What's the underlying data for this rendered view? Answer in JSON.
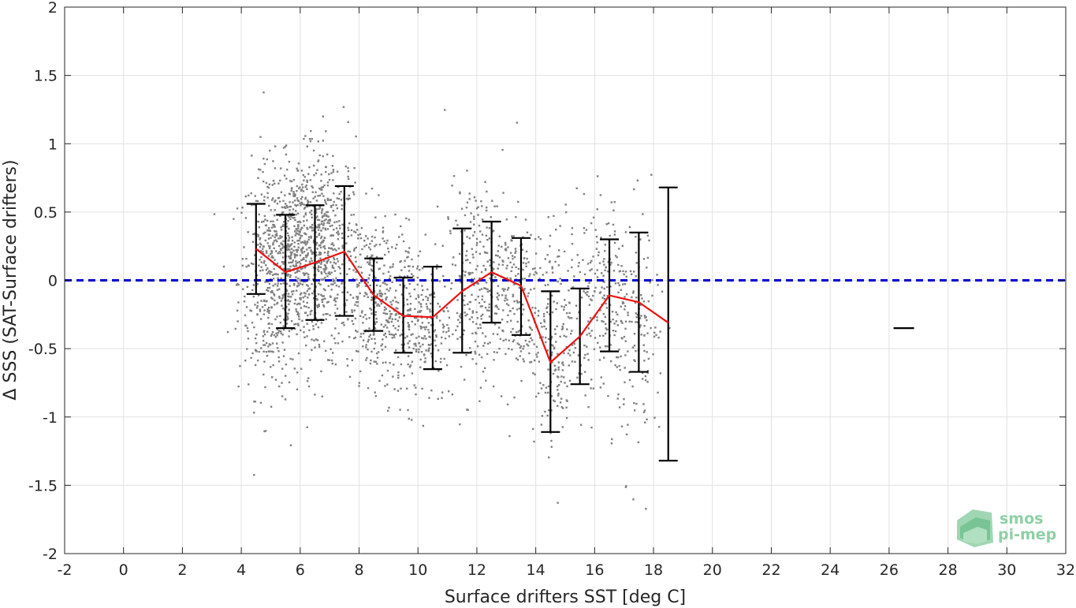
{
  "chart_data": {
    "type": "scatter",
    "xlabel": "Surface drifters SST [deg C]",
    "ylabel": "Δ SSS (SAT-Surface drifters)",
    "xlim": [
      -2,
      32
    ],
    "ylim": [
      -2,
      2
    ],
    "xticks": [
      -2,
      0,
      2,
      4,
      6,
      8,
      10,
      12,
      14,
      16,
      18,
      20,
      22,
      24,
      26,
      28,
      30,
      32
    ],
    "yticks": [
      -2,
      -1.5,
      -1,
      -0.5,
      0,
      0.5,
      1,
      1.5,
      2
    ],
    "xtick_labels": [
      "-2",
      "0",
      "2",
      "4",
      "6",
      "8",
      "10",
      "12",
      "14",
      "16",
      "18",
      "20",
      "22",
      "24",
      "26",
      "28",
      "30",
      "32"
    ],
    "ytick_labels": [
      "-2",
      "-1.5",
      "-1",
      "-0.5",
      "0",
      "0.5",
      "1",
      "1.5",
      "2"
    ],
    "grid": true,
    "reference_line": {
      "y": 0,
      "style": "dashed",
      "color": "#0000cc"
    },
    "colors": {
      "scatter": "#808080",
      "mean_line": "#ee1111",
      "error_bars": "#000000"
    },
    "scatter_clusters": [
      {
        "xc": 5.0,
        "yc": 0.0,
        "sx": 0.55,
        "sy": 0.42,
        "n": 420
      },
      {
        "xc": 6.0,
        "yc": 0.2,
        "sx": 0.55,
        "sy": 0.35,
        "n": 520
      },
      {
        "xc": 7.0,
        "yc": 0.25,
        "sx": 0.55,
        "sy": 0.35,
        "n": 360
      },
      {
        "xc": 8.5,
        "yc": -0.15,
        "sx": 0.55,
        "sy": 0.3,
        "n": 300
      },
      {
        "xc": 10.0,
        "yc": -0.3,
        "sx": 0.6,
        "sy": 0.3,
        "n": 280
      },
      {
        "xc": 12.0,
        "yc": 0.0,
        "sx": 0.55,
        "sy": 0.35,
        "n": 260
      },
      {
        "xc": 13.2,
        "yc": -0.1,
        "sx": 0.45,
        "sy": 0.35,
        "n": 160
      },
      {
        "xc": 14.7,
        "yc": -0.4,
        "sx": 0.5,
        "sy": 0.4,
        "n": 220
      },
      {
        "xc": 16.3,
        "yc": -0.1,
        "sx": 0.45,
        "sy": 0.35,
        "n": 200
      },
      {
        "xc": 17.6,
        "yc": -0.45,
        "sx": 0.4,
        "sy": 0.45,
        "n": 120
      }
    ],
    "series": [
      {
        "name": "",
        "type": "errorbar",
        "x": [
          4.5,
          5.5,
          6.5,
          7.5,
          8.5,
          9.5,
          10.5,
          11.5,
          12.5,
          13.5,
          14.5,
          15.5,
          16.5,
          17.5,
          18.5
        ],
        "mean": [
          0.23,
          0.06,
          0.13,
          0.21,
          -0.11,
          -0.26,
          -0.27,
          -0.08,
          0.06,
          -0.04,
          -0.6,
          -0.41,
          -0.11,
          -0.16,
          -0.31
        ],
        "low": [
          -0.1,
          -0.35,
          -0.29,
          -0.26,
          -0.37,
          -0.53,
          -0.65,
          -0.53,
          -0.31,
          -0.4,
          -1.11,
          -0.76,
          -0.52,
          -0.67,
          -1.32
        ],
        "high": [
          0.56,
          0.48,
          0.55,
          0.69,
          0.16,
          0.02,
          0.1,
          0.38,
          0.43,
          0.31,
          -0.08,
          -0.06,
          0.3,
          0.35,
          0.68
        ]
      }
    ],
    "single_marker": {
      "x": 26.5,
      "y": -0.35
    }
  },
  "logo": {
    "line1": "smos",
    "line2": "pi-mep"
  }
}
